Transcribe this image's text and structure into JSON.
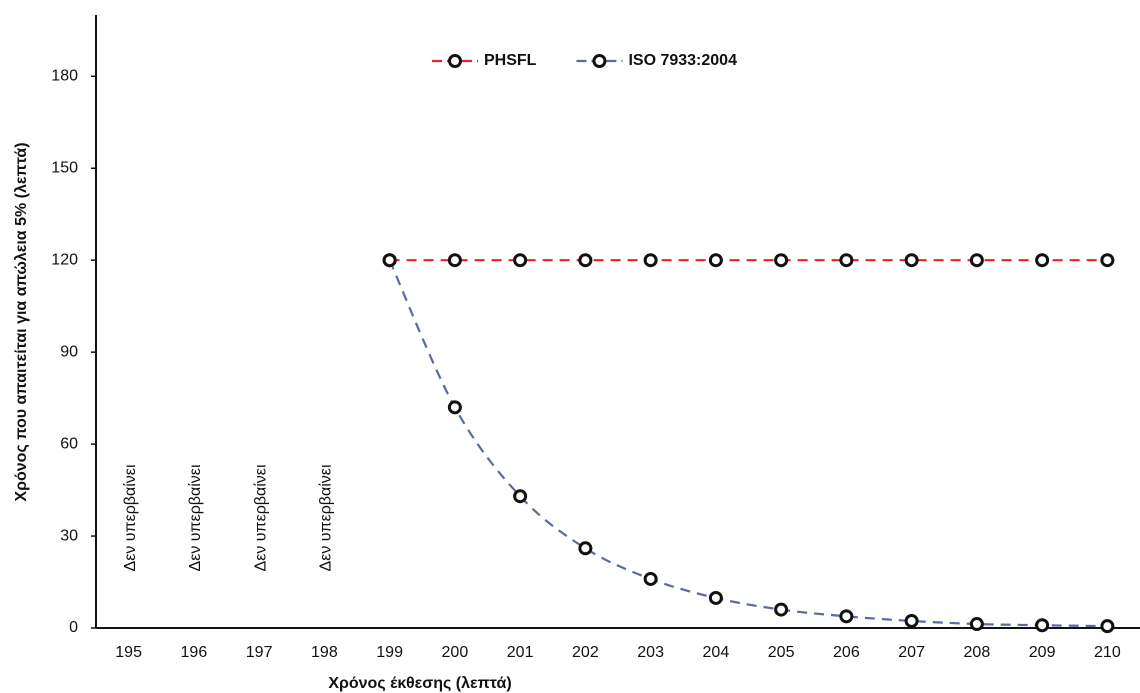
{
  "chart_data": {
    "type": "line",
    "x_label": "Χρόνος έκθεσης (λεπτά)",
    "y_label": "Χρόνος που απαιτείται για απώλεια 5% (λεπτά)",
    "categories": [
      "195",
      "196",
      "197",
      "198",
      "199",
      "200",
      "201",
      "202",
      "203",
      "204",
      "205",
      "206",
      "207",
      "208",
      "209",
      "210"
    ],
    "series": [
      {
        "name": "PHSFL",
        "color": "#e8242b",
        "values": [
          null,
          null,
          null,
          null,
          120,
          120,
          120,
          120,
          120,
          120,
          120,
          120,
          120,
          120,
          120,
          120
        ]
      },
      {
        "name": "ISO 7933:2004",
        "color": "#5b6b9c",
        "values": [
          null,
          null,
          null,
          null,
          120,
          72,
          43,
          26,
          16,
          9.8,
          6,
          3.8,
          2.3,
          1.3,
          0.9,
          0.6
        ]
      }
    ],
    "annotations": [
      "Δεν υπερβαίνει",
      "Δεν υπερβαίνει",
      "Δεν υπερβαίνει",
      "Δεν υπερβαίνει"
    ],
    "ylim": [
      0,
      200
    ],
    "yticks": [
      0,
      30,
      60,
      90,
      120,
      150,
      180
    ],
    "grid": false,
    "legend": "top"
  }
}
